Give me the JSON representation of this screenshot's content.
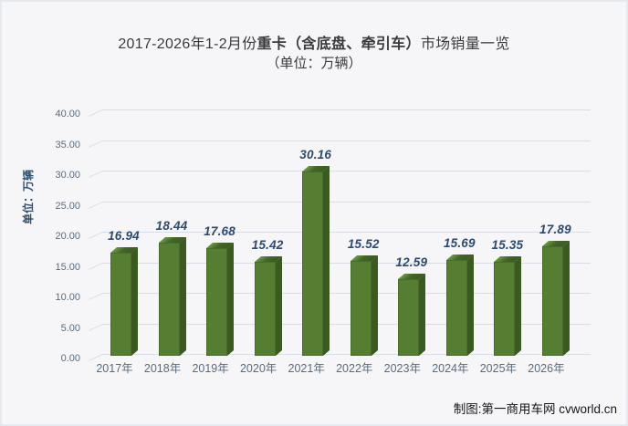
{
  "chart_data": {
    "type": "bar",
    "bar_style": "3d-column",
    "title": "2017-2026年1-2月份重卡（含底盘、牵引车）市场销量一览",
    "title_parts": {
      "prefix": "2017-2026年1-2月份",
      "emphasis": "重卡（含底盘、牵引车）",
      "suffix": "市场销量一览"
    },
    "subtitle": "（单位：万辆）",
    "ylabel": "单位：万辆",
    "categories": [
      "2017年",
      "2018年",
      "2019年",
      "2020年",
      "2021年",
      "2022年",
      "2023年",
      "2024年",
      "2025年",
      "2026年"
    ],
    "values": [
      16.94,
      18.44,
      17.68,
      15.42,
      30.16,
      15.52,
      12.59,
      15.69,
      15.35,
      17.89
    ],
    "value_labels": [
      "16.94",
      "18.44",
      "17.68",
      "15.42",
      "30.16",
      "15.52",
      "12.59",
      "15.69",
      "15.35",
      "17.89"
    ],
    "ylim": [
      0,
      40
    ],
    "ytick_step": 5,
    "yticks": [
      "0.00",
      "5.00",
      "10.00",
      "15.00",
      "20.00",
      "25.00",
      "30.00",
      "35.00",
      "40.00"
    ],
    "grid": true,
    "legend": "none",
    "colors": {
      "bar_front": "#557e33",
      "bar_side": "#3b5a21",
      "bar_top": "#436628",
      "bar_top_highlight": "#6d9a49",
      "value_label": "#2d4a6e",
      "axis_text": "#5b6b7e",
      "ylabel_text": "#2c4f72",
      "gridline": "#d9dde6",
      "title_text": "#3a3a3a",
      "background": "#f6f6f8",
      "frame_border": "#e5e9f0"
    }
  },
  "footer": {
    "credit": "制图:第一商用车网 cvworld.cn"
  }
}
